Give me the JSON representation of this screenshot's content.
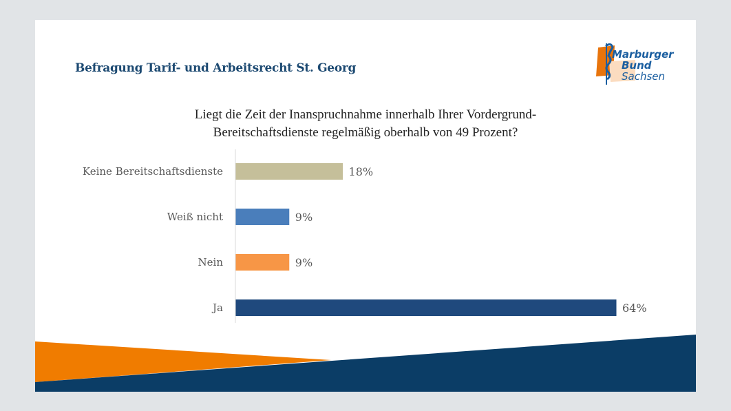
{
  "slide": {
    "title": "Befragung Tarif- und Arbeitsrecht St. Georg",
    "logo": {
      "line1": "Marburger",
      "line2": "Bund",
      "line3": "Sachsen"
    }
  },
  "chart_data": {
    "type": "bar",
    "orientation": "horizontal",
    "title": "Liegt die Zeit der Inanspruchnahme innerhalb Ihrer Vordergrund-Bereitschaftsdienste regelmäßig oberhalb von 49 Prozent?",
    "title_lines": [
      "Liegt die Zeit der Inanspruchnahme innerhalb Ihrer Vordergrund-",
      "Bereitschaftsdienste regelmäßig oberhalb von 49 Prozent?"
    ],
    "categories": [
      "Keine Bereitschaftsdienste",
      "Weiß nicht",
      "Nein",
      "Ja"
    ],
    "values": [
      18,
      9,
      9,
      64
    ],
    "value_labels": [
      "18%",
      "9%",
      "9%",
      "64%"
    ],
    "colors": [
      "#c5bf9a",
      "#4a7ebb",
      "#f79646",
      "#1f497d"
    ],
    "unit": "%",
    "xlabel": "",
    "ylabel": "",
    "xlim": [
      0,
      64
    ],
    "grid": false,
    "legend": "none"
  },
  "colors": {
    "title": "#1d4a72",
    "orange": "#f07c00",
    "navy": "#0b3d66",
    "background": "#e1e4e7"
  }
}
